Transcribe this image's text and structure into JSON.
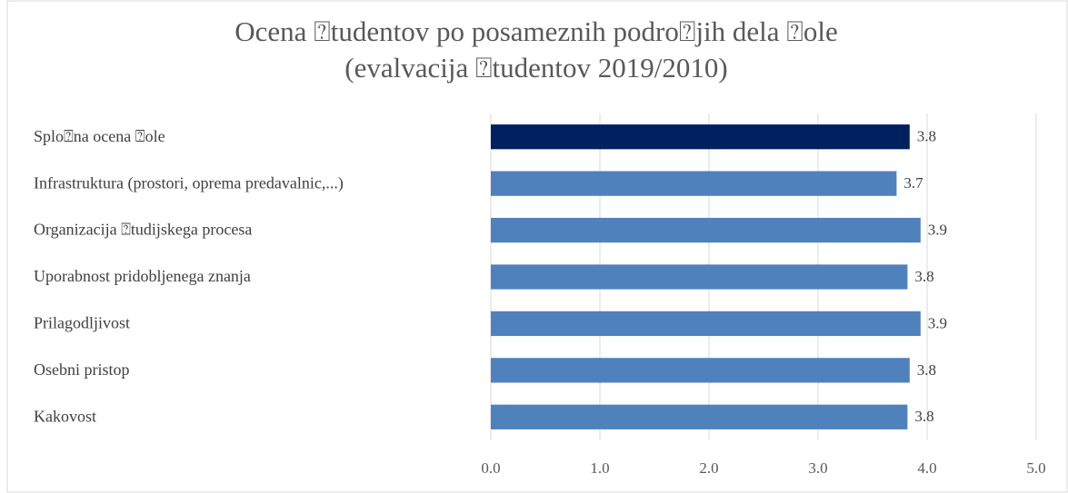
{
  "chart_data": {
    "type": "bar",
    "orientation": "horizontal",
    "title": [
      "Ocena ⍰tudentov po posameznih podro⍰jih dela ⍰ole",
      "(evalvacija ⍰tudentov 2019/2010)"
    ],
    "categories": [
      "Splo⍰na ocena ⍰ole",
      "Infrastruktura (prostori, oprema predavalnic,...)",
      "Organizacija ⍰tudijskega procesa",
      "Uporabnost pridobljenega znanja",
      "Prilagodljivost",
      "Osebni pristop",
      "Kakovost"
    ],
    "values": [
      3.84,
      3.72,
      3.94,
      3.82,
      3.94,
      3.84,
      3.82
    ],
    "value_labels": [
      "3.8",
      "3.7",
      "3.9",
      "3.8",
      "3.9",
      "3.8",
      "3.8"
    ],
    "colors": [
      "#002060",
      "#4f81bd",
      "#4f81bd",
      "#4f81bd",
      "#4f81bd",
      "#4f81bd",
      "#4f81bd"
    ],
    "xlim": [
      0,
      5
    ],
    "xticks": [
      {
        "value": 0,
        "label": "0.0"
      },
      {
        "value": 1,
        "label": "1.0"
      },
      {
        "value": 2,
        "label": "2.0"
      },
      {
        "value": 3,
        "label": "3.0"
      },
      {
        "value": 4,
        "label": "4.0"
      },
      {
        "value": 5,
        "label": "5.0"
      }
    ],
    "grid": true
  }
}
